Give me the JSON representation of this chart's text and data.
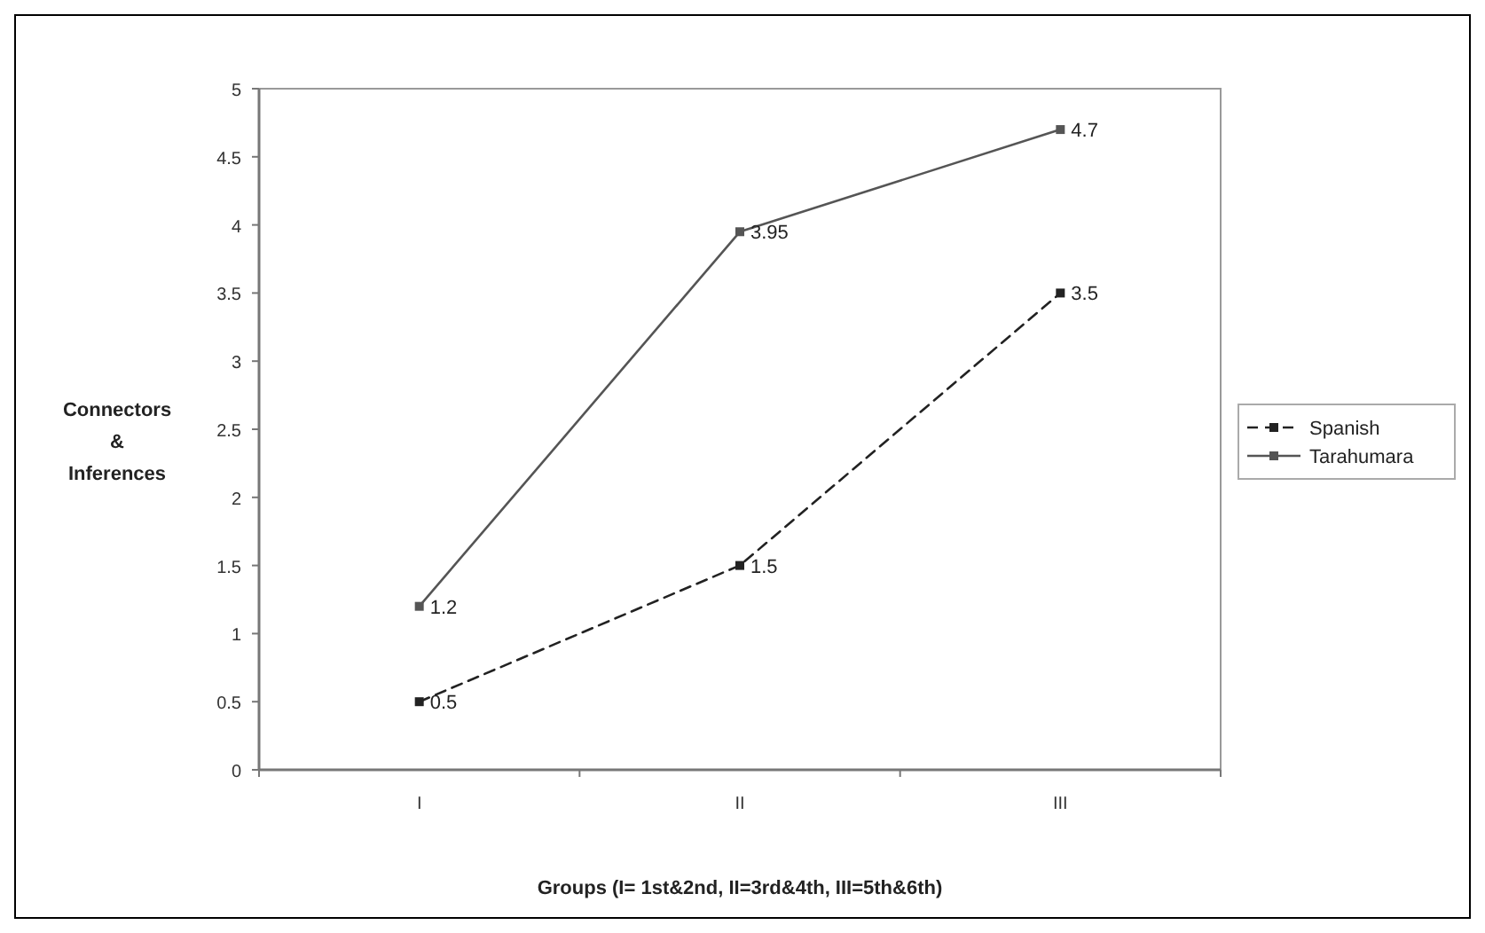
{
  "chart_data": {
    "type": "line",
    "xlabel": "Groups (I= 1st&2nd, II=3rd&4th, III=5th&6th)",
    "ylabel": "Connectors\n&\nInferences",
    "categories": [
      "I",
      "II",
      "III"
    ],
    "series": [
      {
        "name": "Spanish",
        "color": "#222222",
        "values": [
          0.5,
          1.5,
          3.5
        ],
        "line_style": "dashed"
      },
      {
        "name": "Tarahumara",
        "color": "#555555",
        "values": [
          1.2,
          3.95,
          4.7
        ],
        "line_style": "solid"
      }
    ],
    "ylim": [
      0,
      5
    ],
    "yticks": [
      0,
      0.5,
      1,
      1.5,
      2,
      2.5,
      3,
      3.5,
      4,
      4.5,
      5
    ],
    "data_labels": true,
    "marker": "square",
    "legend": "right",
    "grid": false
  }
}
